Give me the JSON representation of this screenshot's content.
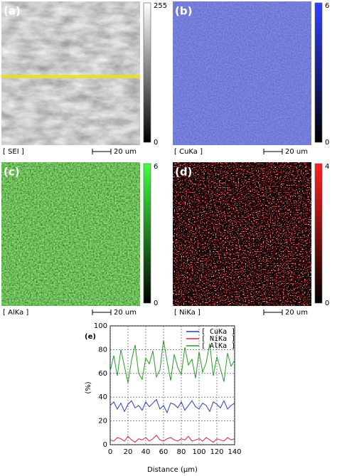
{
  "panels": [
    {
      "label": "(a)",
      "element": "[ SEI ]",
      "scale": "20 um",
      "colorbar_max": 255,
      "colorbar_min": 0
    },
    {
      "label": "(b)",
      "element": "[ CuKa ]",
      "scale": "20 um",
      "colorbar_max": 6,
      "colorbar_min": 0
    },
    {
      "label": "(c)",
      "element": "[ AlKa ]",
      "scale": "20 um",
      "colorbar_max": 6,
      "colorbar_min": 0
    },
    {
      "label": "(d)",
      "element": "[ NiKa ]",
      "scale": "20 um",
      "colorbar_max": 4,
      "colorbar_min": 0
    }
  ],
  "chart_data": {
    "type": "line",
    "panel_label": "(e)",
    "xlabel": "Distance (µm)",
    "ylabel": "(%)",
    "x": [
      0,
      4,
      8,
      12,
      16,
      20,
      24,
      28,
      32,
      36,
      40,
      44,
      48,
      52,
      56,
      60,
      64,
      68,
      72,
      76,
      80,
      84,
      88,
      92,
      96,
      100,
      104,
      108,
      112,
      116,
      120,
      124,
      128,
      132,
      136,
      140
    ],
    "series": [
      {
        "name": "[ CuKa ]",
        "color": "#2f3fbf",
        "values": [
          33,
          36,
          30,
          35,
          28,
          34,
          37,
          31,
          33,
          29,
          36,
          32,
          35,
          38,
          30,
          33,
          27,
          35,
          34,
          31,
          36,
          29,
          33,
          37,
          32,
          30,
          35,
          33,
          28,
          36,
          34,
          31,
          37,
          30,
          33,
          35
        ]
      },
      {
        "name": "[ NiKa ]",
        "color": "#e0203a",
        "values": [
          4,
          3,
          6,
          5,
          3,
          7,
          4,
          2,
          5,
          4,
          6,
          3,
          5,
          8,
          4,
          3,
          5,
          6,
          4,
          3,
          5,
          4,
          7,
          3,
          4,
          5,
          3,
          6,
          4,
          2,
          5,
          4,
          3,
          6,
          4,
          5
        ]
      },
      {
        "name": "[ AlKa ]",
        "color": "#2a9a2a",
        "values": [
          62,
          75,
          58,
          80,
          66,
          52,
          71,
          84,
          60,
          55,
          73,
          68,
          79,
          57,
          63,
          88,
          70,
          54,
          76,
          65,
          59,
          82,
          67,
          72,
          56,
          78,
          61,
          69,
          85,
          58,
          74,
          64,
          53,
          77,
          66,
          71
        ]
      }
    ],
    "xlim": [
      0,
      140
    ],
    "ylim": [
      0,
      100
    ],
    "xticks": [
      0,
      20,
      40,
      60,
      80,
      100,
      120,
      140
    ],
    "yticks": [
      0,
      20,
      40,
      60,
      80,
      100
    ],
    "grid": true
  }
}
